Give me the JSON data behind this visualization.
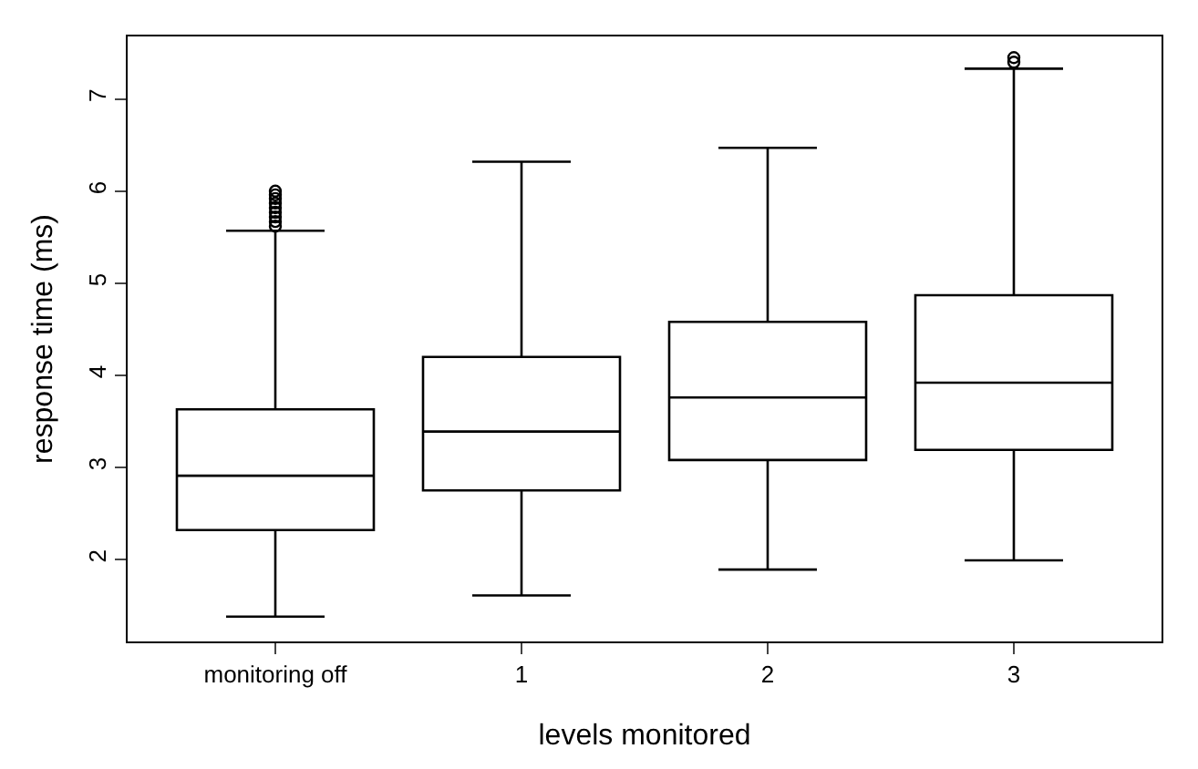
{
  "chart_data": {
    "type": "box",
    "xlabel": "levels monitored",
    "ylabel": "response time (ms)",
    "categories": [
      "monitoring off",
      "1",
      "2",
      "3"
    ],
    "boxes": [
      {
        "low": 1.38,
        "q1": 2.32,
        "median": 2.91,
        "q3": 3.63,
        "high": 5.57,
        "outliers": [
          5.62,
          5.67,
          5.72,
          5.77,
          5.82,
          5.87,
          5.92,
          5.96,
          6.0
        ]
      },
      {
        "low": 1.61,
        "q1": 2.75,
        "median": 3.39,
        "q3": 4.2,
        "high": 6.32
      },
      {
        "low": 1.89,
        "q1": 3.08,
        "median": 3.76,
        "q3": 4.58,
        "high": 6.47
      },
      {
        "low": 1.99,
        "q1": 3.19,
        "median": 3.92,
        "q3": 4.87,
        "high": 7.33,
        "outliers": [
          7.4,
          7.45
        ]
      }
    ],
    "color": "#000000",
    "ylim": [
      1.11,
      7.68
    ],
    "yticks": [
      2,
      3,
      4,
      5,
      6,
      7
    ]
  }
}
